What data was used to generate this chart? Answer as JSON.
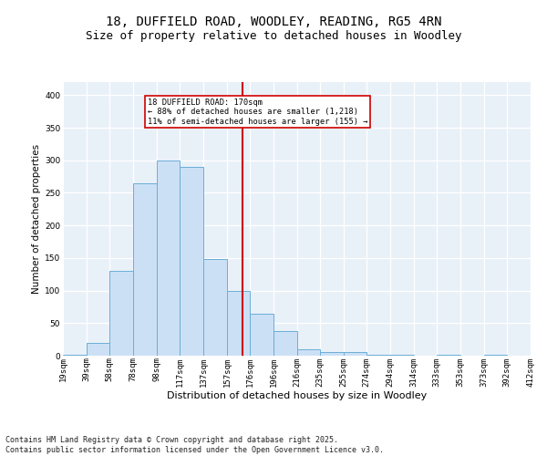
{
  "title_line1": "18, DUFFIELD ROAD, WOODLEY, READING, RG5 4RN",
  "title_line2": "Size of property relative to detached houses in Woodley",
  "xlabel": "Distribution of detached houses by size in Woodley",
  "ylabel": "Number of detached properties",
  "footer_line1": "Contains HM Land Registry data © Crown copyright and database right 2025.",
  "footer_line2": "Contains public sector information licensed under the Open Government Licence v3.0.",
  "annotation_title": "18 DUFFIELD ROAD: 170sqm",
  "annotation_line1": "← 88% of detached houses are smaller (1,218)",
  "annotation_line2": "11% of semi-detached houses are larger (155) →",
  "property_size": 170,
  "bin_edges": [
    19,
    39,
    58,
    78,
    98,
    117,
    137,
    157,
    176,
    196,
    216,
    235,
    255,
    274,
    294,
    314,
    333,
    353,
    373,
    392,
    412
  ],
  "bin_labels": [
    "19sqm",
    "39sqm",
    "58sqm",
    "78sqm",
    "98sqm",
    "117sqm",
    "137sqm",
    "157sqm",
    "176sqm",
    "196sqm",
    "216sqm",
    "235sqm",
    "255sqm",
    "274sqm",
    "294sqm",
    "314sqm",
    "333sqm",
    "353sqm",
    "373sqm",
    "392sqm",
    "412sqm"
  ],
  "bar_heights": [
    2,
    20,
    130,
    265,
    300,
    290,
    148,
    100,
    65,
    38,
    10,
    5,
    5,
    2,
    2,
    0,
    2,
    0,
    2,
    0
  ],
  "bar_color": "#cce0f5",
  "bar_edge_color": "#6aaed6",
  "vline_color": "#cc0000",
  "vline_x": 170,
  "ylim": [
    0,
    420
  ],
  "yticks": [
    0,
    50,
    100,
    150,
    200,
    250,
    300,
    350,
    400
  ],
  "background_color": "#e8f0f8",
  "grid_color": "#ffffff",
  "annotation_box_color": "#cc0000",
  "title_fontsize": 10,
  "subtitle_fontsize": 9,
  "axis_label_fontsize": 8,
  "tick_fontsize": 6.5,
  "footer_fontsize": 6,
  "ylabel_fontsize": 7.5
}
